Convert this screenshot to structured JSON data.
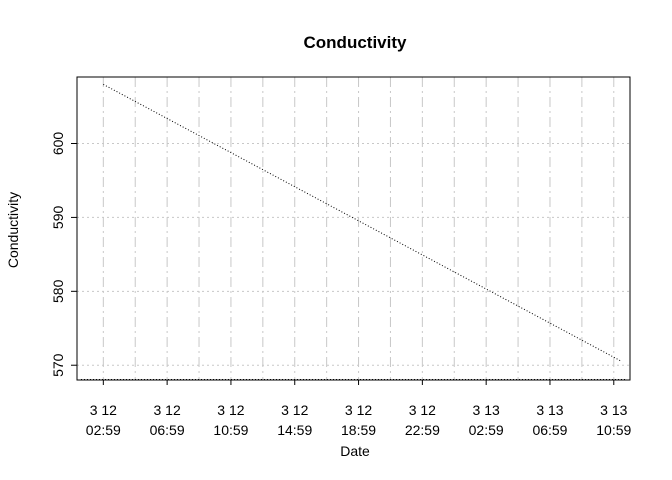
{
  "chart_data": {
    "type": "line",
    "title": "Conductivity",
    "xlabel": "Date",
    "ylabel": "Conductivity",
    "x_ticks": [
      {
        "line1": "3 12",
        "line2": "02:59",
        "t": "2000-03-12T02:59"
      },
      {
        "line1": "3 12",
        "line2": "06:59",
        "t": "2000-03-12T06:59"
      },
      {
        "line1": "3 12",
        "line2": "10:59",
        "t": "2000-03-12T10:59"
      },
      {
        "line1": "3 12",
        "line2": "14:59",
        "t": "2000-03-12T14:59"
      },
      {
        "line1": "3 12",
        "line2": "18:59",
        "t": "2000-03-12T18:59"
      },
      {
        "line1": "3 12",
        "line2": "22:59",
        "t": "2000-03-12T22:59"
      },
      {
        "line1": "3 13",
        "line2": "02:59",
        "t": "2000-03-13T02:59"
      },
      {
        "line1": "3 13",
        "line2": "06:59",
        "t": "2000-03-13T06:59"
      },
      {
        "line1": "3 13",
        "line2": "10:59",
        "t": "2000-03-13T10:59"
      }
    ],
    "y_ticks": [
      570,
      580,
      590,
      600
    ],
    "ylim": [
      568,
      609
    ],
    "xlim": [
      "2000-03-12T01:20",
      "2000-03-13T12:00"
    ],
    "grid": true,
    "line_style": "dotted",
    "line_color": "#000000",
    "grid_color": "#c8c8c8",
    "series": [
      {
        "x": [
          "2000-03-12T02:59",
          "2000-03-13T11:29"
        ],
        "values": [
          608,
          570.5
        ]
      }
    ]
  }
}
